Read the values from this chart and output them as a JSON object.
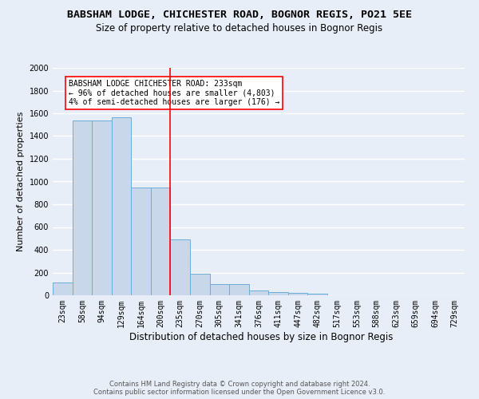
{
  "title1": "BABSHAM LODGE, CHICHESTER ROAD, BOGNOR REGIS, PO21 5EE",
  "title2": "Size of property relative to detached houses in Bognor Regis",
  "xlabel": "Distribution of detached houses by size in Bognor Regis",
  "ylabel": "Number of detached properties",
  "footer1": "Contains HM Land Registry data © Crown copyright and database right 2024.",
  "footer2": "Contains public sector information licensed under the Open Government Licence v3.0.",
  "categories": [
    "23sqm",
    "58sqm",
    "94sqm",
    "129sqm",
    "164sqm",
    "200sqm",
    "235sqm",
    "270sqm",
    "305sqm",
    "341sqm",
    "376sqm",
    "411sqm",
    "447sqm",
    "482sqm",
    "517sqm",
    "553sqm",
    "588sqm",
    "623sqm",
    "659sqm",
    "694sqm",
    "729sqm"
  ],
  "values": [
    110,
    1540,
    1540,
    1565,
    950,
    950,
    490,
    190,
    100,
    95,
    40,
    30,
    20,
    15,
    0,
    0,
    0,
    0,
    0,
    0,
    0
  ],
  "bar_color": "#c8d8ea",
  "bar_edge_color": "#6aaed6",
  "red_line_index": 6,
  "annotation_text": "BABSHAM LODGE CHICHESTER ROAD: 233sqm\n← 96% of detached houses are smaller (4,803)\n4% of semi-detached houses are larger (176) →",
  "ylim_max": 2000,
  "yticks": [
    0,
    200,
    400,
    600,
    800,
    1000,
    1200,
    1400,
    1600,
    1800,
    2000
  ],
  "background_color": "#e8eef8",
  "grid_color": "#ffffff",
  "title_fontsize": 9.5,
  "subtitle_fontsize": 8.5,
  "ylabel_fontsize": 8,
  "xlabel_fontsize": 8.5,
  "tick_fontsize": 7,
  "annotation_fontsize": 7,
  "footer_fontsize": 6
}
